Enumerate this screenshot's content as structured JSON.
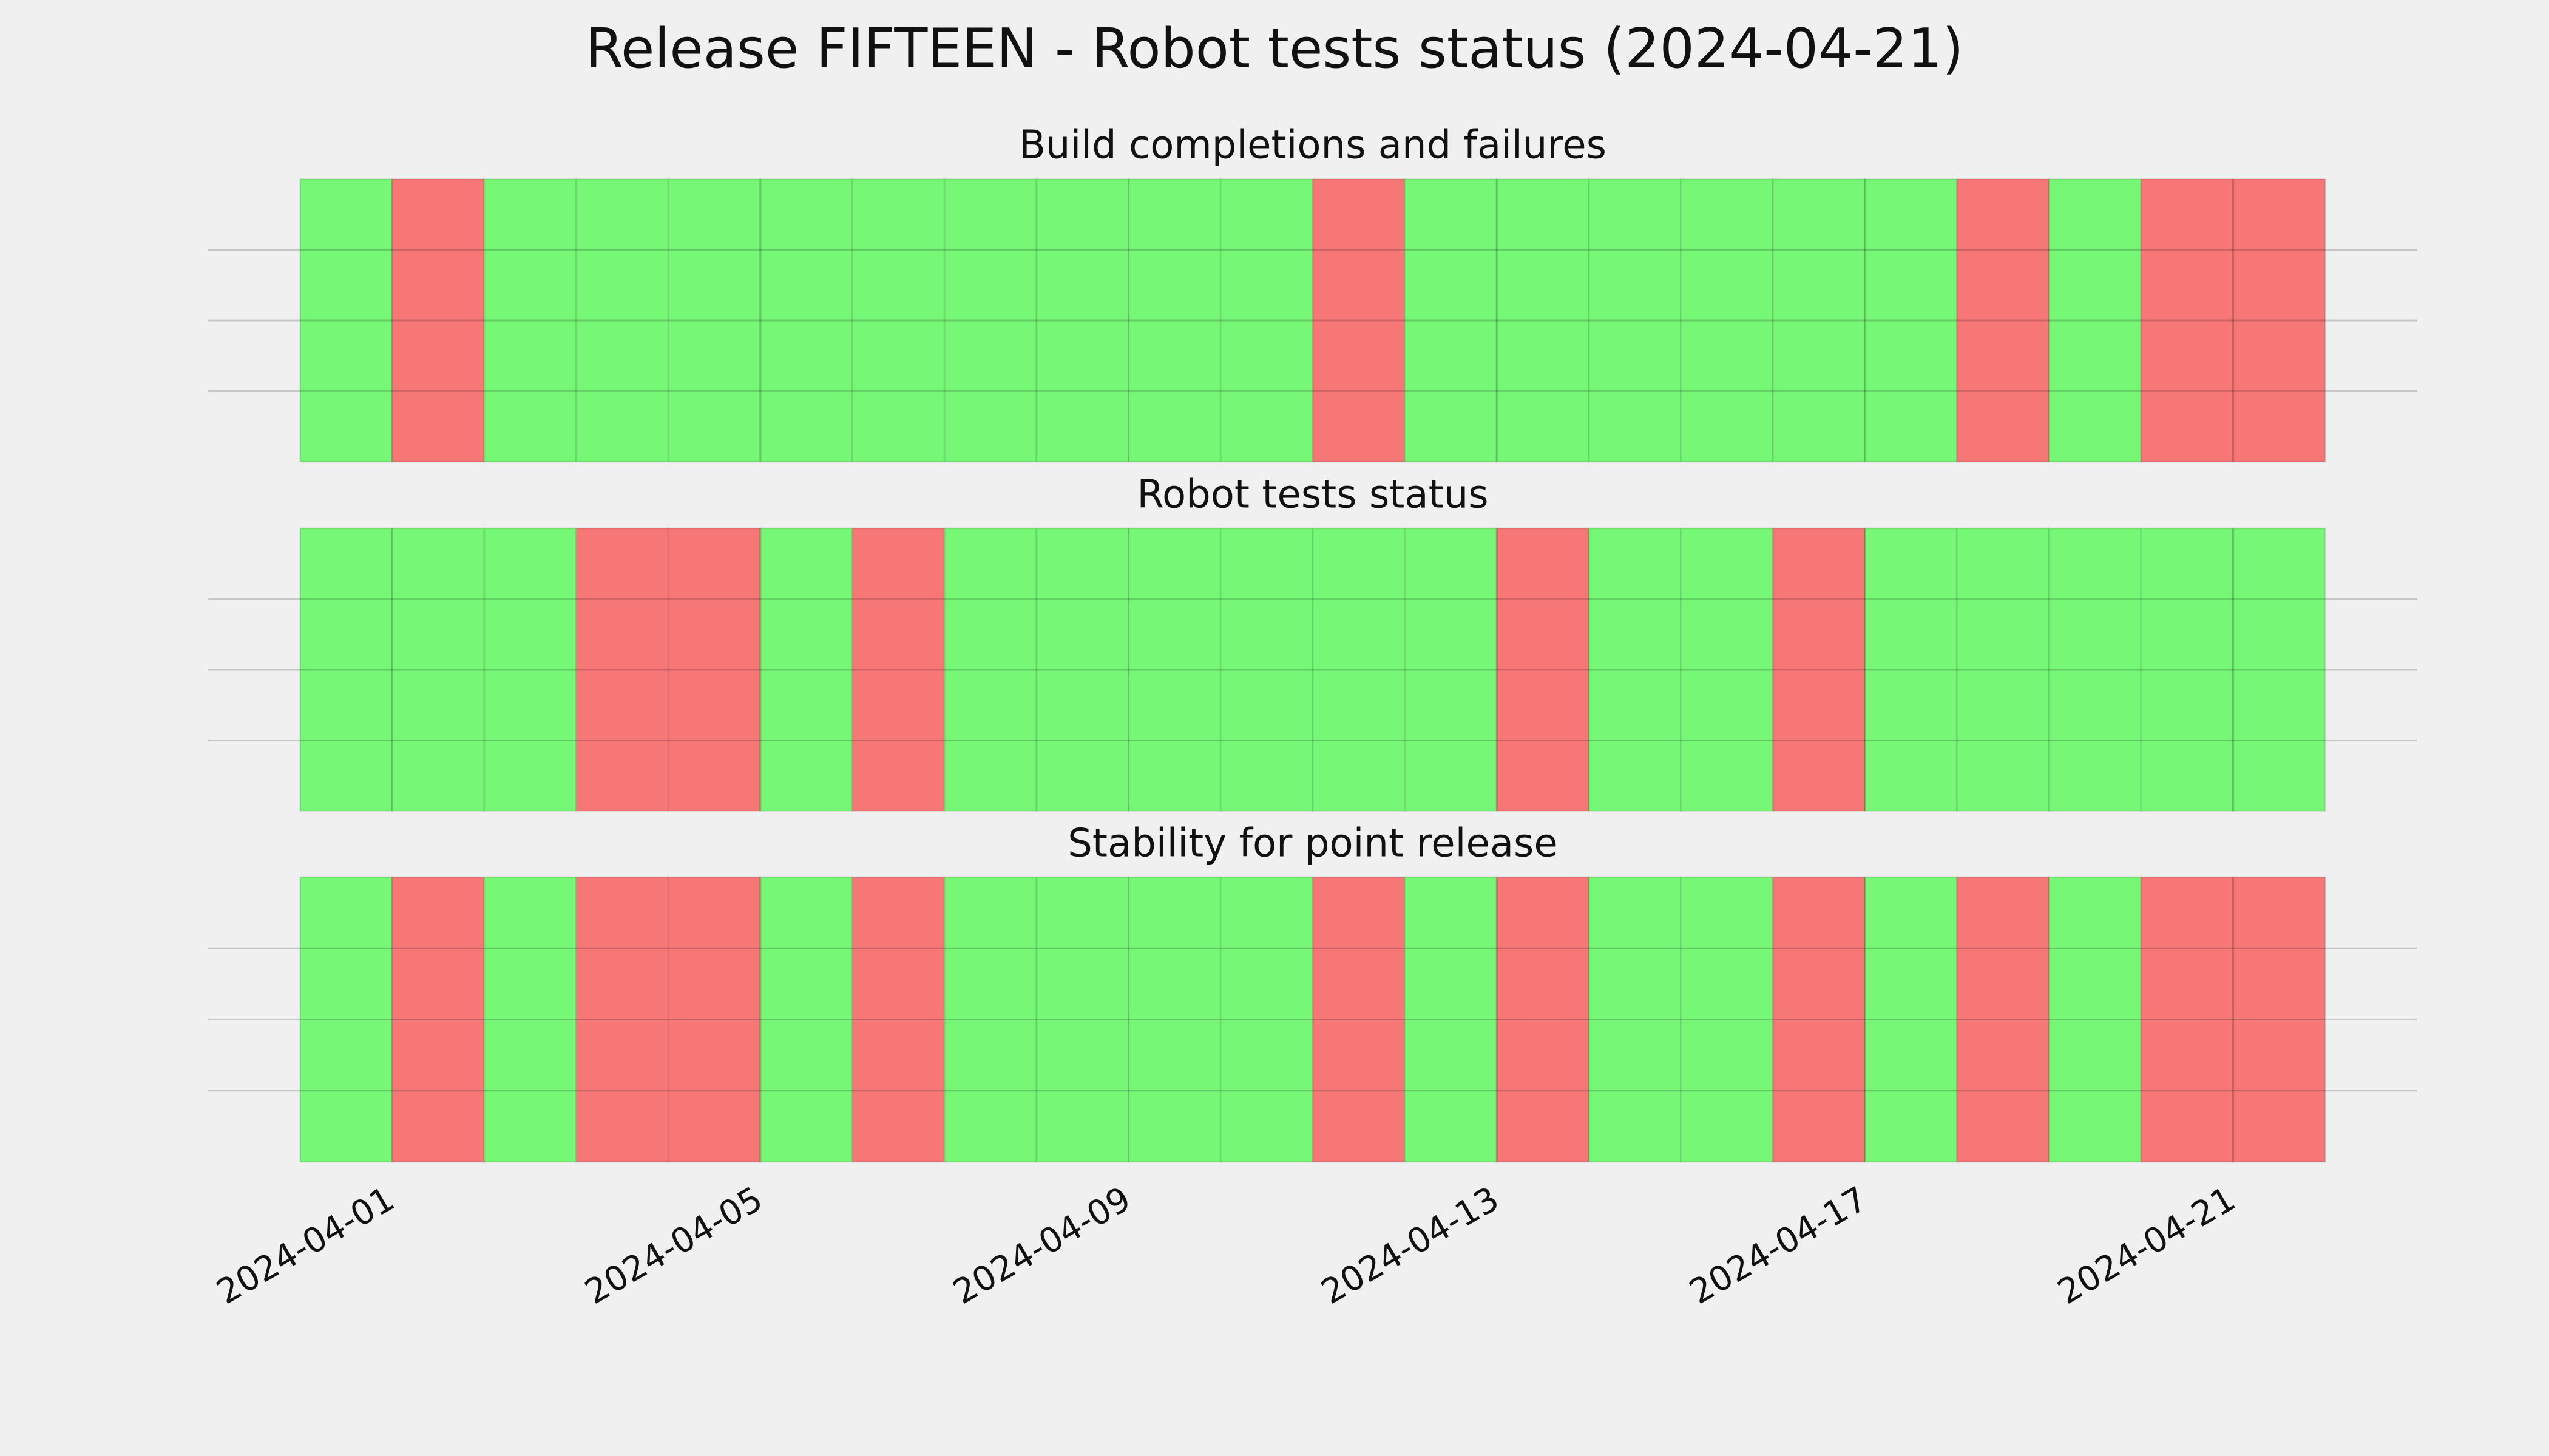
{
  "title": "Release FIFTEEN - Robot tests status (2024-04-21)",
  "chart_data": [
    {
      "type": "timeline",
      "title": "Build completions and failures",
      "x": [
        "2024-03-31",
        "2024-04-01",
        "2024-04-02",
        "2024-04-03",
        "2024-04-04",
        "2024-04-05",
        "2024-04-06",
        "2024-04-07",
        "2024-04-08",
        "2024-04-09",
        "2024-04-10",
        "2024-04-11",
        "2024-04-12",
        "2024-04-13",
        "2024-04-14",
        "2024-04-15",
        "2024-04-16",
        "2024-04-17",
        "2024-04-18",
        "2024-04-19",
        "2024-04-20",
        "2024-04-21"
      ],
      "colors": [
        "#76f776",
        "#f77777",
        "#76f776",
        "#76f776",
        "#76f776",
        "#76f776",
        "#76f776",
        "#76f776",
        "#76f776",
        "#76f776",
        "#76f776",
        "#f77777",
        "#76f776",
        "#76f776",
        "#76f776",
        "#76f776",
        "#76f776",
        "#76f776",
        "#f77777",
        "#76f776",
        "#f77777",
        "#f77777"
      ],
      "xlim": [
        "2024-03-30",
        "2024-04-23"
      ],
      "xticks": [
        "2024-04-01",
        "2024-04-05",
        "2024-04-09",
        "2024-04-13",
        "2024-04-17",
        "2024-04-21"
      ],
      "ylim": [
        0,
        1
      ],
      "yticks": [
        0.25,
        0.5,
        0.75
      ],
      "grid": true
    },
    {
      "type": "timeline",
      "title": "Robot tests status",
      "x": [
        "2024-03-31",
        "2024-04-01",
        "2024-04-02",
        "2024-04-03",
        "2024-04-04",
        "2024-04-05",
        "2024-04-06",
        "2024-04-07",
        "2024-04-08",
        "2024-04-09",
        "2024-04-10",
        "2024-04-11",
        "2024-04-12",
        "2024-04-13",
        "2024-04-14",
        "2024-04-15",
        "2024-04-16",
        "2024-04-17",
        "2024-04-18",
        "2024-04-19",
        "2024-04-20",
        "2024-04-21"
      ],
      "colors": [
        "#76f776",
        "#76f776",
        "#76f776",
        "#f77777",
        "#f77777",
        "#76f776",
        "#f77777",
        "#76f776",
        "#76f776",
        "#76f776",
        "#76f776",
        "#76f776",
        "#76f776",
        "#f77777",
        "#76f776",
        "#76f776",
        "#f77777",
        "#76f776",
        "#76f776",
        "#76f776",
        "#76f776",
        "#76f776"
      ],
      "xlim": [
        "2024-03-30",
        "2024-04-23"
      ],
      "xticks": [
        "2024-04-01",
        "2024-04-05",
        "2024-04-09",
        "2024-04-13",
        "2024-04-17",
        "2024-04-21"
      ],
      "ylim": [
        0,
        1
      ],
      "yticks": [
        0.25,
        0.5,
        0.75
      ],
      "grid": true
    },
    {
      "type": "timeline",
      "title": "Stability for point release",
      "x": [
        "2024-03-31",
        "2024-04-01",
        "2024-04-02",
        "2024-04-03",
        "2024-04-04",
        "2024-04-05",
        "2024-04-06",
        "2024-04-07",
        "2024-04-08",
        "2024-04-09",
        "2024-04-10",
        "2024-04-11",
        "2024-04-12",
        "2024-04-13",
        "2024-04-14",
        "2024-04-15",
        "2024-04-16",
        "2024-04-17",
        "2024-04-18",
        "2024-04-19",
        "2024-04-20",
        "2024-04-21"
      ],
      "colors": [
        "#76f776",
        "#f77777",
        "#76f776",
        "#f77777",
        "#f77777",
        "#76f776",
        "#f77777",
        "#76f776",
        "#76f776",
        "#76f776",
        "#76f776",
        "#f77777",
        "#76f776",
        "#f77777",
        "#76f776",
        "#76f776",
        "#f77777",
        "#76f776",
        "#f77777",
        "#76f776",
        "#f77777",
        "#f77777"
      ],
      "xlim": [
        "2024-03-30",
        "2024-04-23"
      ],
      "xticks": [
        "2024-04-01",
        "2024-04-05",
        "2024-04-09",
        "2024-04-13",
        "2024-04-17",
        "2024-04-21"
      ],
      "ylim": [
        0,
        1
      ],
      "yticks": [
        0.25,
        0.5,
        0.75
      ],
      "grid": true,
      "xtick_labels": true
    }
  ]
}
